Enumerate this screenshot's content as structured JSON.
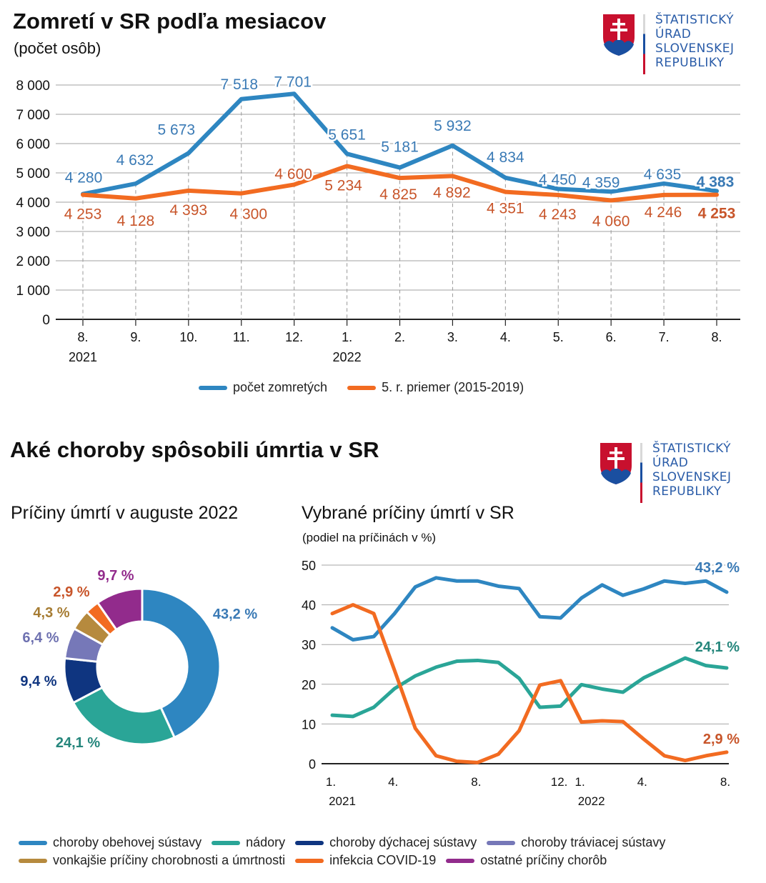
{
  "page": {
    "title1": "Zomretí v SR podľa mesiacov",
    "subtitle1": "(počet osôb)",
    "title2": "Aké choroby spôsobili úmrtia v SR",
    "donut_title": "Príčiny úmrtí v auguste 2022",
    "line2_title": "Vybrané príčiny úmrtí v SR",
    "line2_subtitle": "(podiel na príčinách v %)"
  },
  "logo": {
    "lines": [
      "ŠTATISTICKÝ",
      "ÚRAD",
      "SLOVENSKEJ",
      "REPUBLIKY"
    ],
    "colors": {
      "text": "#2a5ca8",
      "red": "#c8102e",
      "blue": "#1a4fa0",
      "white": "#ffffff"
    }
  },
  "chart_data": [
    {
      "type": "line",
      "title": "Zomretí v SR podľa mesiacov",
      "subtitle": "(počet osôb)",
      "xlabel": "",
      "ylabel": "",
      "ylim": [
        0,
        8000
      ],
      "yticks": [
        0,
        1000,
        2000,
        3000,
        4000,
        5000,
        6000,
        7000,
        8000
      ],
      "ytick_labels": [
        "0",
        "1 000",
        "2 000",
        "3 000",
        "4 000",
        "5 000",
        "6 000",
        "7 000",
        "8 000"
      ],
      "categories": [
        "8.",
        "9.",
        "10.",
        "11.",
        "12.",
        "1.",
        "2.",
        "3.",
        "4.",
        "5.",
        "6.",
        "7.",
        "8."
      ],
      "year_labels": [
        {
          "index": 0,
          "label": "2021"
        },
        {
          "index": 5,
          "label": "2022"
        }
      ],
      "grid": true,
      "legend_position": "bottom-center",
      "series": [
        {
          "name": "počet zomretých",
          "color": "#2e86c1",
          "label_color": "#3a7ab5",
          "values": [
            4280,
            4632,
            5673,
            7518,
            7701,
            5651,
            5181,
            5932,
            4834,
            4450,
            4359,
            4635,
            4383
          ],
          "labels": [
            "4 280",
            "4 632",
            "5 673",
            "7 518",
            "7 701",
            "5 651",
            "5 181",
            "5 932",
            "4 834",
            "4 450",
            "4 359",
            "4 635",
            "4 383"
          ]
        },
        {
          "name": "5. r. priemer (2015-2019)",
          "color": "#f26b21",
          "label_color": "#c8552a",
          "values": [
            4253,
            4128,
            4393,
            4300,
            4600,
            5234,
            4825,
            4892,
            4351,
            4243,
            4060,
            4246,
            4253
          ],
          "labels": [
            "4 253",
            "4 128",
            "4 393",
            "4 300",
            "4 600",
            "5 234",
            "4 825",
            "4 892",
            "4 351",
            "4 243",
            "4 060",
            "4 246",
            "4 253"
          ]
        }
      ]
    },
    {
      "type": "pie",
      "title": "Príčiny úmrtí v auguste 2022",
      "donut": true,
      "slices": [
        {
          "name": "choroby obehovej sústavy",
          "value": 43.2,
          "label": "43,2 %",
          "color": "#2e86c1",
          "label_color": "#3a7ab5"
        },
        {
          "name": "nádory",
          "value": 24.1,
          "label": "24,1 %",
          "color": "#2aa597",
          "label_color": "#25867c"
        },
        {
          "name": "choroby dýchacej sústavy",
          "value": 9.4,
          "label": "9,4 %",
          "color": "#0f3580",
          "label_color": "#0f3580"
        },
        {
          "name": "choroby tráviacej sústavy",
          "value": 6.4,
          "label": "6,4 %",
          "color": "#7678b8",
          "label_color": "#6e71b0"
        },
        {
          "name": "vonkajšie príčiny chorobnosti a úmrtnosti",
          "value": 4.3,
          "label": "4,3 %",
          "color": "#b68a3e",
          "label_color": "#a67c33"
        },
        {
          "name": "infekcia COVID-19",
          "value": 2.9,
          "label": "2,9 %",
          "color": "#f26b21",
          "label_color": "#c8552a"
        },
        {
          "name": "ostatné príčiny chorôb",
          "value": 9.7,
          "label": "9,7 %",
          "color": "#922b8c",
          "label_color": "#922b8c"
        }
      ]
    },
    {
      "type": "line",
      "title": "Vybrané príčiny úmrtí v SR",
      "subtitle": "(podiel na príčinách v %)",
      "ylim": [
        0,
        50
      ],
      "yticks": [
        0,
        10,
        20,
        30,
        40,
        50
      ],
      "ytick_labels": [
        "0",
        "10",
        "20",
        "30",
        "40",
        "50"
      ],
      "x_count": 20,
      "xtick_labels": [
        {
          "index": 0,
          "label": "1."
        },
        {
          "index": 3,
          "label": "4."
        },
        {
          "index": 7,
          "label": "8."
        },
        {
          "index": 11,
          "label": "12."
        },
        {
          "index": 12,
          "label": "1."
        },
        {
          "index": 15,
          "label": "4."
        },
        {
          "index": 19,
          "label": "8."
        }
      ],
      "year_labels": [
        {
          "index": 0,
          "label": "2021"
        },
        {
          "index": 12,
          "label": "2022"
        }
      ],
      "grid": true,
      "series": [
        {
          "name": "choroby obehovej sústavy",
          "color": "#2e86c1",
          "end_label": "43,2 %",
          "label_color": "#3a7ab5",
          "values": [
            34.2,
            31.2,
            32.0,
            37.8,
            44.5,
            46.8,
            46.0,
            46.0,
            44.7,
            44.1,
            37.0,
            36.7,
            41.7,
            45.0,
            42.4,
            44.0,
            46.0,
            45.4,
            46.0,
            43.2
          ]
        },
        {
          "name": "nádory",
          "color": "#2aa597",
          "end_label": "24,1 %",
          "label_color": "#25867c",
          "values": [
            12.2,
            11.9,
            14.2,
            18.9,
            22.1,
            24.3,
            25.8,
            26.0,
            25.5,
            21.5,
            14.2,
            14.5,
            19.9,
            18.8,
            18.0,
            21.6,
            24.1,
            26.6,
            24.7,
            24.1
          ]
        },
        {
          "name": "infekcia COVID-19",
          "color": "#f26b21",
          "end_label": "2,9 %",
          "label_color": "#c8552a",
          "values": [
            37.8,
            40.0,
            37.8,
            23.5,
            8.9,
            2.0,
            0.6,
            0.3,
            2.4,
            8.3,
            19.8,
            20.9,
            10.5,
            10.8,
            10.6,
            6.2,
            2.0,
            0.8,
            2.0,
            2.9
          ]
        }
      ]
    }
  ],
  "legend_bottom": [
    {
      "label": "choroby obehovej sústavy",
      "color": "#2e86c1"
    },
    {
      "label": "nádory",
      "color": "#2aa597"
    },
    {
      "label": "choroby dýchacej sústavy",
      "color": "#0f3580"
    },
    {
      "label": "choroby tráviacej sústavy",
      "color": "#7678b8"
    },
    {
      "label": "vonkajšie príčiny chorobnosti a úmrtnosti",
      "color": "#b68a3e"
    },
    {
      "label": "infekcia COVID-19",
      "color": "#f26b21"
    },
    {
      "label": "ostatné príčiny chorôb",
      "color": "#922b8c"
    }
  ]
}
